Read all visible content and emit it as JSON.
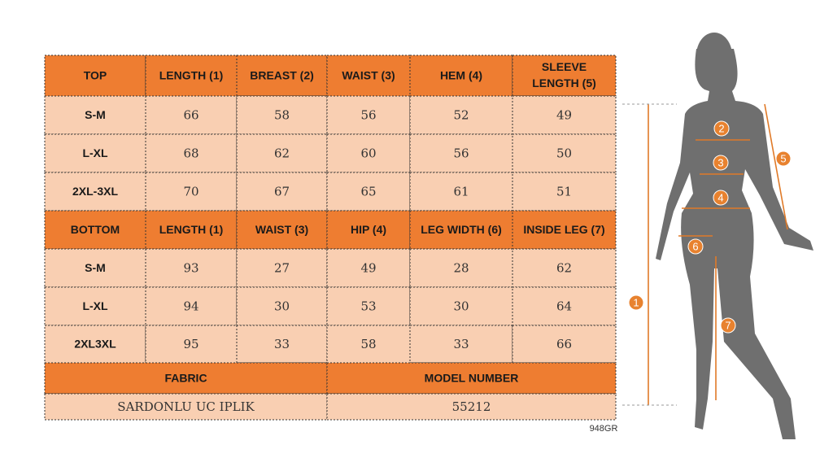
{
  "top": {
    "header": [
      "TOP",
      "LENGTH (1)",
      "BREAST (2)",
      "WAIST (3)",
      "HEM (4)",
      "SLEEVE LENGTH (5)"
    ],
    "rows": [
      [
        "S-M",
        66,
        58,
        56,
        52,
        49
      ],
      [
        "L-XL",
        68,
        62,
        60,
        56,
        50
      ],
      [
        "2XL-3XL",
        70,
        67,
        65,
        61,
        51
      ]
    ]
  },
  "bottom": {
    "header": [
      "BOTTOM",
      "LENGTH (1)",
      "WAIST (3)",
      "HIP (4)",
      "LEG WIDTH (6)",
      "INSIDE LEG (7)"
    ],
    "rows": [
      [
        "S-M",
        93,
        27,
        49,
        28,
        62
      ],
      [
        "L-XL",
        94,
        30,
        53,
        30,
        64
      ],
      [
        "2XL3XL",
        95,
        33,
        58,
        33,
        66
      ]
    ]
  },
  "info": {
    "header": [
      "FABRIC",
      "MODEL NUMBER"
    ],
    "values": [
      "SARDONLU UC IPLIK",
      "55212"
    ]
  },
  "code": "948GR",
  "figure": {
    "markers": [
      "1",
      "2",
      "3",
      "4",
      "5",
      "6",
      "7"
    ]
  }
}
